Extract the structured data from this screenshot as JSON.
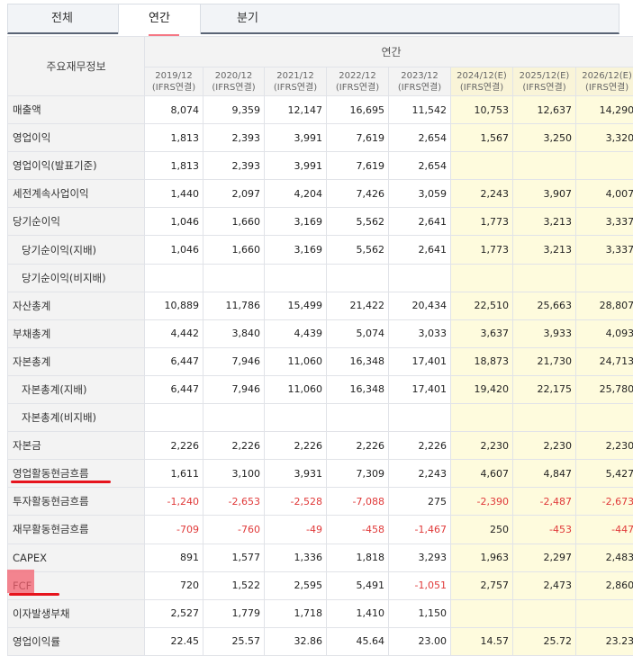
{
  "tabs": [
    {
      "label": "전체"
    },
    {
      "label": "연간"
    },
    {
      "label": "분기"
    }
  ],
  "table": {
    "item_header": "주요재무정보",
    "period_header": "연간",
    "columns": [
      {
        "year": "2019/12",
        "basis": "(IFRS연결)",
        "estimate": false
      },
      {
        "year": "2020/12",
        "basis": "(IFRS연결)",
        "estimate": false
      },
      {
        "year": "2021/12",
        "basis": "(IFRS연결)",
        "estimate": false
      },
      {
        "year": "2022/12",
        "basis": "(IFRS연결)",
        "estimate": false
      },
      {
        "year": "2023/12",
        "basis": "(IFRS연결)",
        "estimate": false
      },
      {
        "year": "2024/12(E)",
        "basis": "(IFRS연결)",
        "estimate": true
      },
      {
        "year": "2025/12(E)",
        "basis": "(IFRS연결)",
        "estimate": true
      },
      {
        "year": "2026/12(E)",
        "basis": "(IFRS연결)",
        "estimate": true
      }
    ],
    "rows": [
      {
        "label": "매출액",
        "indent": false,
        "values": [
          "8,074",
          "9,359",
          "12,147",
          "16,695",
          "11,542",
          "10,753",
          "12,637",
          "14,290"
        ]
      },
      {
        "label": "영업이익",
        "indent": false,
        "values": [
          "1,813",
          "2,393",
          "3,991",
          "7,619",
          "2,654",
          "1,567",
          "3,250",
          "3,320"
        ]
      },
      {
        "label": "영업이익(발표기준)",
        "indent": false,
        "values": [
          "1,813",
          "2,393",
          "3,991",
          "7,619",
          "2,654",
          "",
          "",
          ""
        ]
      },
      {
        "label": "세전계속사업이익",
        "indent": false,
        "values": [
          "1,440",
          "2,097",
          "4,204",
          "7,426",
          "3,059",
          "2,243",
          "3,907",
          "4,007"
        ]
      },
      {
        "label": "당기순이익",
        "indent": false,
        "values": [
          "1,046",
          "1,660",
          "3,169",
          "5,562",
          "2,641",
          "1,773",
          "3,213",
          "3,337"
        ]
      },
      {
        "label": "당기순이익(지배)",
        "indent": true,
        "values": [
          "1,046",
          "1,660",
          "3,169",
          "5,562",
          "2,641",
          "1,773",
          "3,213",
          "3,337"
        ]
      },
      {
        "label": "당기순이익(비지배)",
        "indent": true,
        "values": [
          "",
          "",
          "",
          "",
          "",
          "",
          "",
          ""
        ]
      },
      {
        "label": "자산총계",
        "indent": false,
        "values": [
          "10,889",
          "11,786",
          "15,499",
          "21,422",
          "20,434",
          "22,510",
          "25,663",
          "28,807"
        ]
      },
      {
        "label": "부채총계",
        "indent": false,
        "values": [
          "4,442",
          "3,840",
          "4,439",
          "5,074",
          "3,033",
          "3,637",
          "3,933",
          "4,093"
        ]
      },
      {
        "label": "자본총계",
        "indent": false,
        "values": [
          "6,447",
          "7,946",
          "11,060",
          "16,348",
          "17,401",
          "18,873",
          "21,730",
          "24,713"
        ]
      },
      {
        "label": "자본총계(지배)",
        "indent": true,
        "values": [
          "6,447",
          "7,946",
          "11,060",
          "16,348",
          "17,401",
          "19,420",
          "22,175",
          "25,780"
        ]
      },
      {
        "label": "자본총계(비지배)",
        "indent": true,
        "values": [
          "",
          "",
          "",
          "",
          "",
          "",
          "",
          ""
        ]
      },
      {
        "label": "자본금",
        "indent": false,
        "values": [
          "2,226",
          "2,226",
          "2,226",
          "2,226",
          "2,226",
          "2,230",
          "2,230",
          "2,230"
        ]
      },
      {
        "label": "영업활동현금흐름",
        "indent": false,
        "values": [
          "1,611",
          "3,100",
          "3,931",
          "7,309",
          "2,243",
          "4,607",
          "4,847",
          "5,427"
        ]
      },
      {
        "label": "투자활동현금흐름",
        "indent": false,
        "values": [
          "-1,240",
          "-2,653",
          "-2,528",
          "-7,088",
          "275",
          "-2,390",
          "-2,487",
          "-2,673"
        ]
      },
      {
        "label": "재무활동현금흐름",
        "indent": false,
        "values": [
          "-709",
          "-760",
          "-49",
          "-458",
          "-1,467",
          "250",
          "-453",
          "-447"
        ]
      },
      {
        "label": "CAPEX",
        "indent": false,
        "values": [
          "891",
          "1,577",
          "1,336",
          "1,818",
          "3,293",
          "1,963",
          "2,297",
          "2,483"
        ]
      },
      {
        "label": "FCF",
        "indent": false,
        "values": [
          "720",
          "1,522",
          "2,595",
          "5,491",
          "-1,051",
          "2,757",
          "2,473",
          "2,860"
        ]
      },
      {
        "label": "이자발생부채",
        "indent": false,
        "values": [
          "2,527",
          "1,779",
          "1,718",
          "1,410",
          "1,150",
          "",
          "",
          ""
        ]
      },
      {
        "label": "영업이익률",
        "indent": false,
        "values": [
          "22.45",
          "25.57",
          "32.86",
          "45.64",
          "23.00",
          "14.57",
          "25.72",
          "23.23"
        ]
      }
    ]
  },
  "colors": {
    "annotation_red": "#e6141d",
    "negative_value": "#e03a3a",
    "estimate_bg": "#fefbdd"
  }
}
